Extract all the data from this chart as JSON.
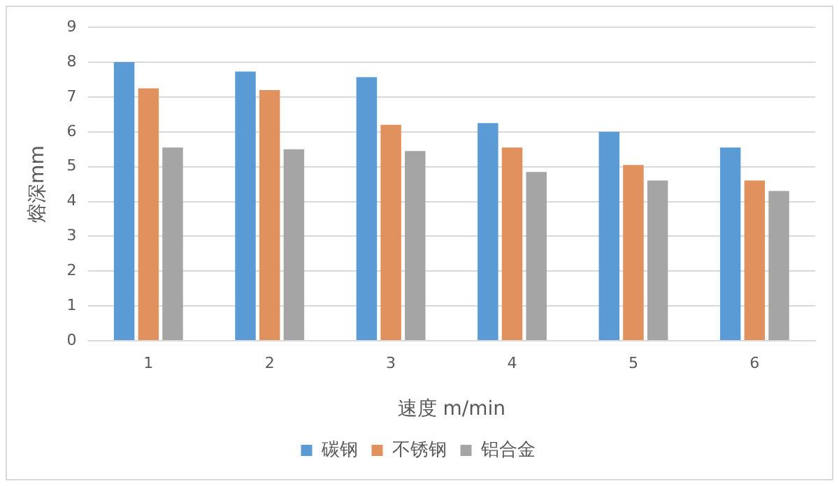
{
  "chart_data": {
    "type": "bar",
    "xlabel": "速度 m/min",
    "ylabel": "熔深mm",
    "categories": [
      "1",
      "2",
      "3",
      "4",
      "5",
      "6"
    ],
    "series": [
      {
        "name": "碳钢",
        "color": "#5b9bd5",
        "values": [
          8.0,
          7.73,
          7.57,
          6.25,
          6.0,
          5.55
        ]
      },
      {
        "name": "不锈钢",
        "color": "#e0915e",
        "values": [
          7.25,
          7.2,
          6.2,
          5.55,
          5.05,
          4.6
        ]
      },
      {
        "name": "铝合金",
        "color": "#a5a5a5",
        "values": [
          5.55,
          5.5,
          5.45,
          4.85,
          4.6,
          4.3
        ]
      }
    ],
    "ylim": [
      0,
      9
    ],
    "yticks": [
      0,
      1,
      2,
      3,
      4,
      5,
      6,
      7,
      8,
      9
    ],
    "grid": "y",
    "legend": "bottom"
  }
}
